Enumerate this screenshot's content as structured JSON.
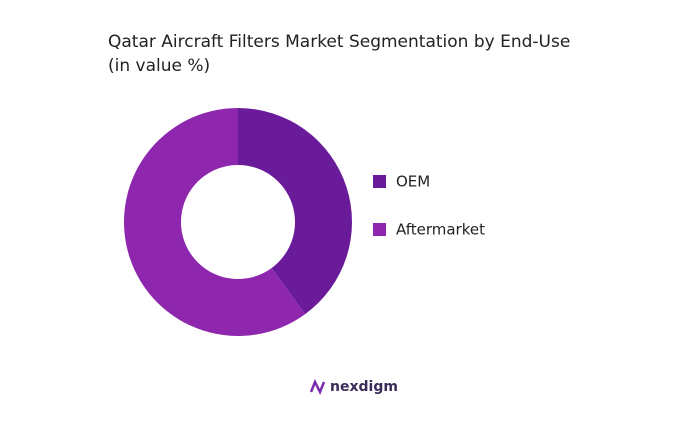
{
  "chart_data": {
    "type": "donut",
    "title": "Qatar Aircraft Filters Market Segmentation by End-Use",
    "subtitle": "(in value %)",
    "categories": [
      "OEM",
      "Aftermarket"
    ],
    "values": [
      40,
      60
    ],
    "colors": [
      "#6a1b9a",
      "#8e27ad"
    ],
    "legend": "right"
  },
  "brand": "nexdigm"
}
